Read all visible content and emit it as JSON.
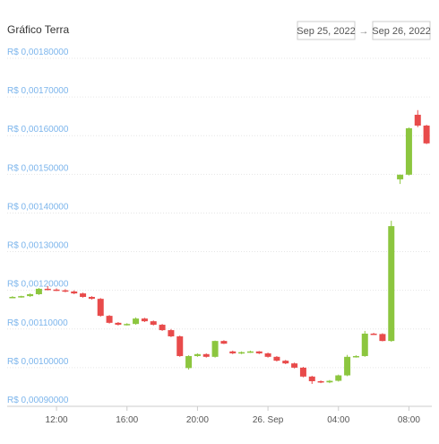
{
  "header": {
    "title": "Gráfico Terra",
    "from": "Sep 25, 2022",
    "arrow": "→",
    "to": "Sep 26, 2022"
  },
  "chart_data": {
    "type": "candlestick",
    "x": [
      9.5,
      10,
      10.5,
      11,
      11.5,
      12,
      12.5,
      13,
      13.5,
      14,
      14.5,
      15,
      15.5,
      16,
      16.5,
      17,
      17.5,
      18,
      18.5,
      19,
      19.5,
      20,
      20.5,
      21,
      21.5,
      22,
      22.5,
      23,
      23.5,
      24,
      24.5,
      25,
      25.5,
      26,
      26.5,
      27,
      27.5,
      28,
      28.5,
      29,
      29.5,
      30,
      30.5,
      31,
      31.5,
      32,
      32.5,
      33
    ],
    "open": [
      0.001183,
      0.001183,
      0.001185,
      0.00119,
      0.001204,
      0.001202,
      0.0012,
      0.001197,
      0.001192,
      0.001183,
      0.001178,
      0.001134,
      0.001116,
      0.001111,
      0.001113,
      0.001127,
      0.00112,
      0.001111,
      0.001097,
      0.001081,
      0.000999,
      0.00103,
      0.001035,
      0.001028,
      0.001069,
      0.001042,
      0.001037,
      0.00104,
      0.001042,
      0.001037,
      0.001028,
      0.001018,
      0.001011,
      0.001,
      0.000977,
      0.000965,
      0.000962,
      0.000966,
      0.00098,
      0.001028,
      0.00103,
      0.001088,
      0.001087,
      0.001069,
      0.001487,
      0.001499,
      0.001654,
      0.001626
    ],
    "high": [
      0.001185,
      0.001186,
      0.001192,
      0.001206,
      0.001211,
      0.001205,
      0.001203,
      0.0012,
      0.001194,
      0.001185,
      0.00118,
      0.001136,
      0.001118,
      0.001115,
      0.00113,
      0.001129,
      0.001122,
      0.001113,
      0.0011,
      0.001083,
      0.001032,
      0.001037,
      0.001037,
      0.00107,
      0.001071,
      0.001044,
      0.001042,
      0.001044,
      0.001043,
      0.001039,
      0.00103,
      0.00102,
      0.001013,
      0.001002,
      0.000979,
      0.000967,
      0.000968,
      0.000982,
      0.001033,
      0.001032,
      0.001095,
      0.00109,
      0.001089,
      0.00138,
      0.001499,
      0.001621,
      0.001666,
      0.001628
    ],
    "low": [
      0.001181,
      0.001181,
      0.001183,
      0.001188,
      0.0012,
      0.001198,
      0.001195,
      0.00119,
      0.001181,
      0.001176,
      0.001132,
      0.001114,
      0.001109,
      0.001109,
      0.001111,
      0.001118,
      0.001109,
      0.001095,
      0.001079,
      0.001028,
      0.000995,
      0.001028,
      0.001026,
      0.001026,
      0.001061,
      0.001035,
      0.001035,
      0.001038,
      0.001035,
      0.001026,
      0.001016,
      0.001009,
      0.000998,
      0.000975,
      0.000958,
      0.00096,
      0.00096,
      0.000964,
      0.000978,
      0.001026,
      0.001028,
      0.001085,
      0.001068,
      0.001067,
      0.001475,
      0.001497,
      0.001622,
      0.001578
    ],
    "close": [
      0.001183,
      0.001185,
      0.00119,
      0.001204,
      0.001202,
      0.0012,
      0.001197,
      0.001192,
      0.001183,
      0.001178,
      0.001134,
      0.001116,
      0.001111,
      0.001113,
      0.001127,
      0.00112,
      0.001111,
      0.001097,
      0.001081,
      0.00103,
      0.00103,
      0.001035,
      0.001028,
      0.001069,
      0.001062,
      0.001037,
      0.00104,
      0.001042,
      0.001037,
      0.001028,
      0.001018,
      0.001011,
      0.001,
      0.000977,
      0.000965,
      0.000962,
      0.000966,
      0.00098,
      0.001028,
      0.00103,
      0.001088,
      0.001087,
      0.001069,
      0.001366,
      0.001499,
      0.001619,
      0.001626,
      0.00158
    ],
    "up_color": "#8cc63f",
    "down_color": "#e84b4b",
    "xlim": [
      9.2,
      33.3
    ],
    "xticks": [
      {
        "value": 12,
        "label": "12:00"
      },
      {
        "value": 16,
        "label": "16:00"
      },
      {
        "value": 20,
        "label": "20:00"
      },
      {
        "value": 24,
        "label": "26. Sep"
      },
      {
        "value": 28,
        "label": "04:00"
      },
      {
        "value": 32,
        "label": "08:00"
      }
    ],
    "ylim": [
      0.0009,
      0.0018
    ],
    "yticks": [
      {
        "value": 0.0009,
        "label": "R$ 0,00090000"
      },
      {
        "value": 0.001,
        "label": "R$ 0,00100000"
      },
      {
        "value": 0.0011,
        "label": "R$ 0,00110000"
      },
      {
        "value": 0.0012,
        "label": "R$ 0,00120000"
      },
      {
        "value": 0.0013,
        "label": "R$ 0,00130000"
      },
      {
        "value": 0.0014,
        "label": "R$ 0,00140000"
      },
      {
        "value": 0.0015,
        "label": "R$ 0,00150000"
      },
      {
        "value": 0.0016,
        "label": "R$ 0,00160000"
      },
      {
        "value": 0.0017,
        "label": "R$ 0,00170000"
      },
      {
        "value": 0.0018,
        "label": "R$ 0,00180000"
      }
    ],
    "grid": true
  }
}
